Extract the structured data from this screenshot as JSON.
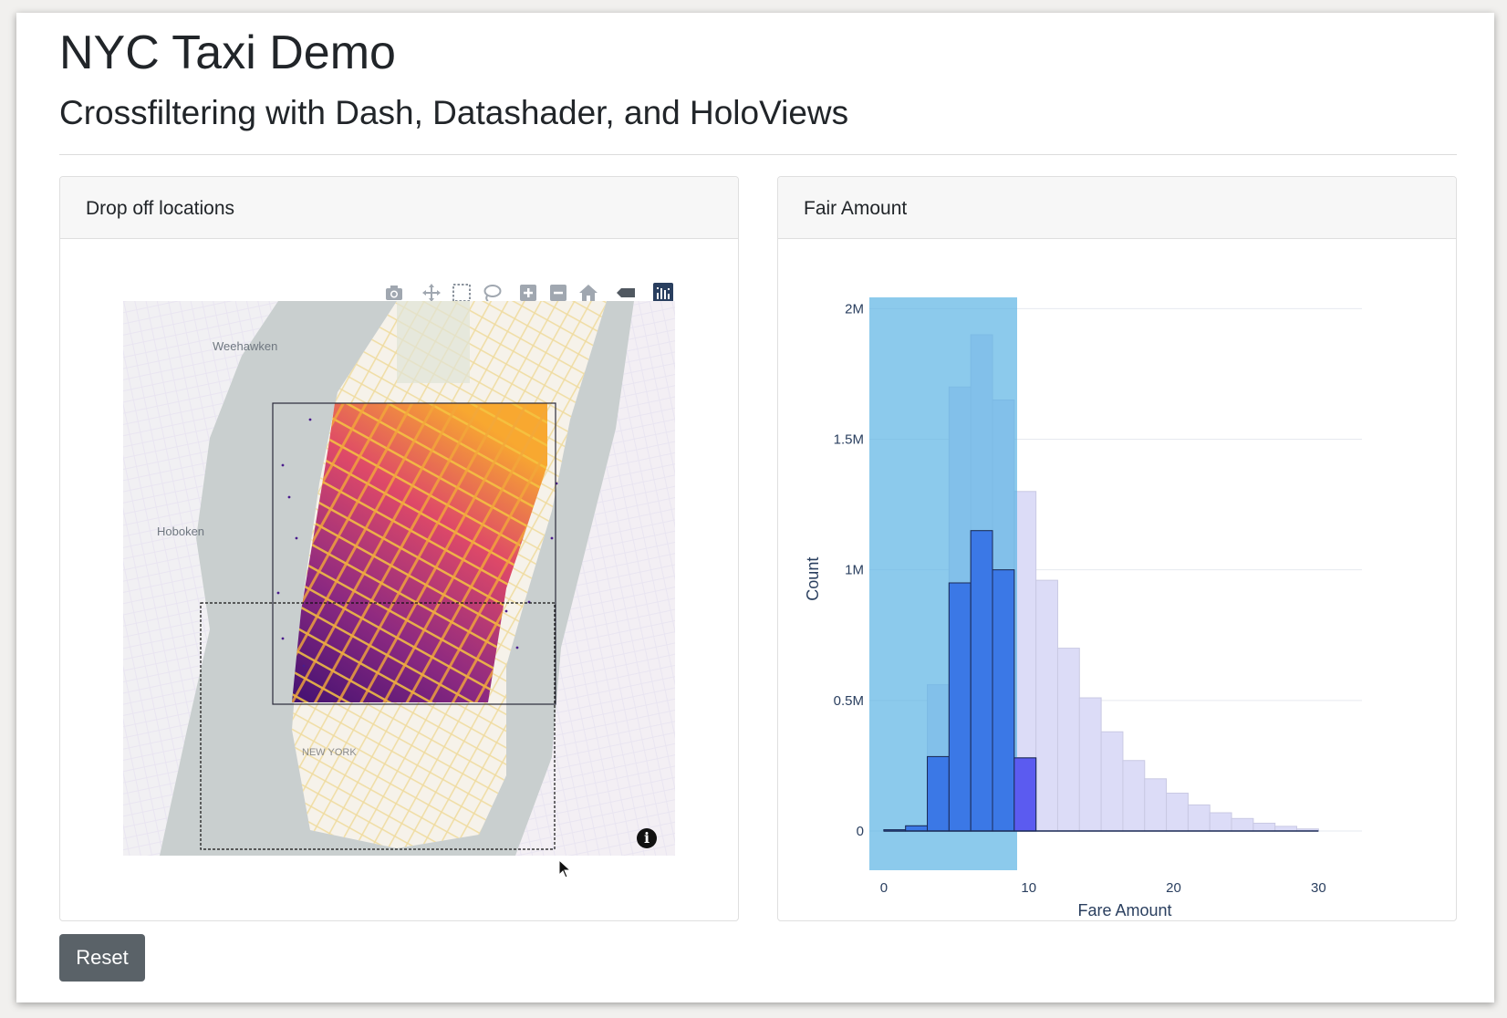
{
  "header": {
    "title": "NYC Taxi Demo",
    "subtitle": "Crossfiltering with Dash, Datashader, and HoloViews"
  },
  "map_card": {
    "title": "Drop off locations",
    "labels": {
      "weehawken": "Weehawken",
      "hoboken": "Hoboken",
      "new_york": "NEW YORK"
    },
    "modebar": [
      "camera-icon",
      "pan-icon",
      "box-select-icon",
      "lasso-icon",
      "zoom-in-icon",
      "zoom-out-icon",
      "home-icon",
      "toggle-hover-icon",
      "plotly-logo-icon"
    ],
    "info_glyph": "i"
  },
  "hist_card": {
    "title": "Fair Amount",
    "chart_data": {
      "type": "bar",
      "xlabel": "Fare Amount",
      "ylabel": "Count",
      "xlim": [
        -1,
        33
      ],
      "ylim": [
        -150000,
        2050000
      ],
      "x_ticks": [
        0,
        10,
        20,
        30
      ],
      "y_ticks": [
        {
          "v": 0,
          "label": "0"
        },
        {
          "v": 500000,
          "label": "0.5M"
        },
        {
          "v": 1000000,
          "label": "1M"
        },
        {
          "v": 1500000,
          "label": "1.5M"
        },
        {
          "v": 2000000,
          "label": "2M"
        }
      ],
      "bin_width": 1.5,
      "bins": [
        0,
        1.5,
        3,
        4.5,
        6,
        7.5,
        9,
        10.5,
        12,
        13.5,
        15,
        16.5,
        18,
        19.5,
        21,
        22.5,
        24,
        25.5,
        27,
        28.5
      ],
      "series": [
        {
          "values": [
            5000,
            20000,
            560000,
            1700000,
            1900000,
            1650000,
            1300000,
            960000,
            700000,
            510000,
            380000,
            270000,
            200000,
            145000,
            100000,
            70000,
            48000,
            30000,
            18000,
            8000
          ],
          "color": "#dcdcf7"
        },
        {
          "values": [
            5000,
            20000,
            285000,
            950000,
            1150000,
            1000000,
            280000,
            0,
            0,
            0,
            0,
            0,
            0,
            0,
            0,
            0,
            0,
            0,
            0,
            0
          ],
          "color": "#3b78e6"
        }
      ],
      "selection_range": [
        -1,
        9.2
      ],
      "selection_color": "#5bb3e4",
      "highlight_color": "#5b5bf0"
    }
  },
  "reset_label": "Reset"
}
